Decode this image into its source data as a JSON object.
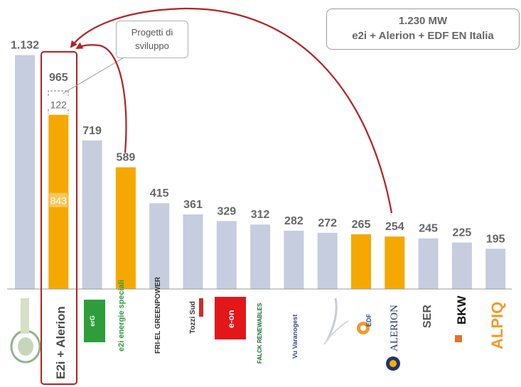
{
  "callout": {
    "line1": "1.230 MW",
    "line2": "e2i + Alerion + EDF EN Italia"
  },
  "dev_box": {
    "line1": "Progetti di",
    "line2": "sviluppo"
  },
  "chart_data": {
    "type": "bar",
    "categories": [
      "",
      "E2i + Alerion",
      "",
      "e2i energie speciali",
      "FRI-EL GREENPOWER",
      "Tozzi Sud",
      "e-on",
      "FALCK RENEWABLES",
      "Vu Varanogest",
      "",
      "EDF",
      "ALERION",
      "SER",
      "BKW",
      "ALPIQ"
    ],
    "values": [
      1132,
      965,
      719,
      589,
      415,
      361,
      329,
      312,
      282,
      272,
      265,
      254,
      245,
      225,
      195
    ],
    "value_labels": [
      "1.132",
      "965",
      "719",
      "589",
      "415",
      "361",
      "329",
      "312",
      "282",
      "272",
      "265",
      "254",
      "245",
      "225",
      "195"
    ],
    "highlighted": [
      false,
      true,
      false,
      true,
      false,
      false,
      false,
      false,
      false,
      false,
      true,
      true,
      false,
      false,
      false
    ],
    "stack": {
      "index": 1,
      "base": 843,
      "top": 122,
      "base_label": "843",
      "top_label": "122"
    },
    "ylim": [
      0,
      1200
    ],
    "colors": {
      "default": "#c5cddf",
      "highlight": "#f5a800",
      "accent": "#b22222",
      "text": "#666666"
    }
  }
}
